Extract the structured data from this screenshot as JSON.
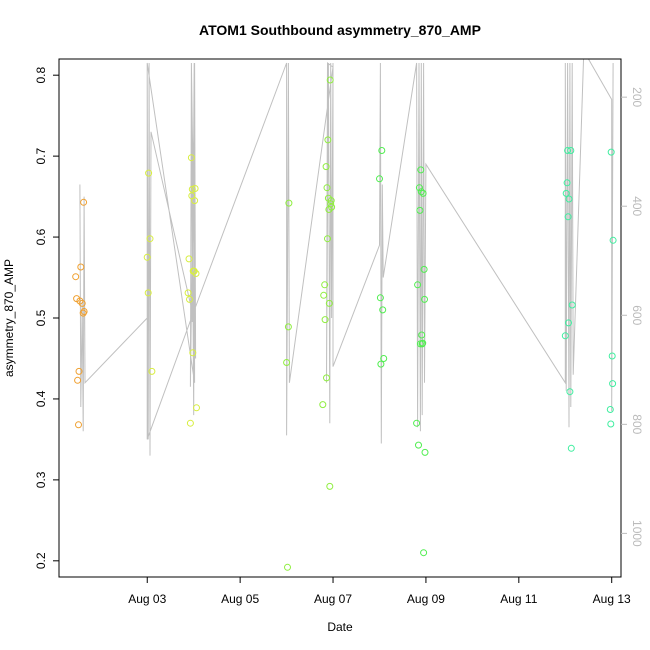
{
  "chart_data": {
    "type": "scatter",
    "title": "ATOM1 Southbound asymmetry_870_AMP",
    "xlabel": "Date",
    "ylabel": "asymmetry_870_AMP",
    "xlim": [
      1.1,
      13.2
    ],
    "ylim": [
      0.18,
      0.82
    ],
    "x_ticks": [
      3,
      5,
      7,
      9,
      11,
      13
    ],
    "x_tick_labels": [
      "Aug 03",
      "Aug 05",
      "Aug 07",
      "Aug 09",
      "Aug 11",
      "Aug 13"
    ],
    "y_ticks": [
      0.2,
      0.3,
      0.4,
      0.5,
      0.6,
      0.7,
      0.8
    ],
    "y_tick_labels": [
      "0.2",
      "0.3",
      "0.4",
      "0.5",
      "0.6",
      "0.7",
      "0.8"
    ],
    "right_axis": {
      "lim": [
        1080,
        130
      ],
      "ticks": [
        200,
        400,
        600,
        800,
        1000
      ],
      "tick_labels": [
        "200",
        "400",
        "600",
        "800",
        "1000"
      ],
      "color": "#bbbbbb"
    },
    "line_color": "#c0c0c0",
    "marker": "open-circle",
    "grid": false,
    "legend": "none",
    "series": [
      {
        "color": "#f0a030",
        "points": [
          [
            1.46,
            0.551
          ],
          [
            1.48,
            0.524
          ],
          [
            1.5,
            0.423
          ],
          [
            1.52,
            0.368
          ],
          [
            1.53,
            0.434
          ],
          [
            1.55,
            0.521
          ],
          [
            1.57,
            0.563
          ],
          [
            1.6,
            0.518
          ],
          [
            1.62,
            0.506
          ],
          [
            1.63,
            0.643
          ],
          [
            1.64,
            0.508
          ]
        ]
      },
      {
        "color": "#d8ee40",
        "points": [
          [
            3.0,
            0.575
          ],
          [
            3.02,
            0.531
          ],
          [
            3.03,
            0.679
          ],
          [
            3.06,
            0.598
          ],
          [
            3.1,
            0.434
          ],
          [
            3.88,
            0.531
          ],
          [
            3.9,
            0.573
          ],
          [
            3.91,
            0.523
          ],
          [
            3.93,
            0.37
          ],
          [
            3.95,
            0.698
          ],
          [
            3.96,
            0.651
          ],
          [
            3.97,
            0.659
          ],
          [
            3.98,
            0.457
          ],
          [
            3.99,
            0.558
          ],
          [
            4.01,
            0.558
          ],
          [
            4.02,
            0.645
          ],
          [
            4.03,
            0.66
          ],
          [
            4.05,
            0.555
          ],
          [
            4.06,
            0.389
          ]
        ]
      },
      {
        "color": "#90ee40",
        "points": [
          [
            6.0,
            0.445
          ],
          [
            6.02,
            0.192
          ],
          [
            6.04,
            0.489
          ],
          [
            6.05,
            0.642
          ],
          [
            6.78,
            0.393
          ],
          [
            6.8,
            0.528
          ],
          [
            6.82,
            0.541
          ],
          [
            6.83,
            0.498
          ],
          [
            6.85,
            0.687
          ],
          [
            6.86,
            0.426
          ],
          [
            6.87,
            0.661
          ],
          [
            6.88,
            0.598
          ],
          [
            6.89,
            0.72
          ],
          [
            6.9,
            0.648
          ],
          [
            6.91,
            0.634
          ],
          [
            6.92,
            0.518
          ],
          [
            6.93,
            0.292
          ],
          [
            6.94,
            0.794
          ],
          [
            6.95,
            0.641
          ],
          [
            6.96,
            0.645
          ],
          [
            6.97,
            0.637
          ]
        ]
      },
      {
        "color": "#50ee50",
        "points": [
          [
            8.0,
            0.672
          ],
          [
            8.02,
            0.525
          ],
          [
            8.03,
            0.443
          ],
          [
            8.05,
            0.707
          ],
          [
            8.07,
            0.51
          ],
          [
            8.09,
            0.45
          ],
          [
            8.8,
            0.37
          ],
          [
            8.82,
            0.541
          ],
          [
            8.84,
            0.343
          ],
          [
            8.86,
            0.661
          ],
          [
            8.87,
            0.633
          ],
          [
            8.88,
            0.468
          ],
          [
            8.89,
            0.683
          ],
          [
            8.9,
            0.656
          ],
          [
            8.91,
            0.479
          ],
          [
            8.92,
            0.468
          ],
          [
            8.93,
            0.469
          ],
          [
            8.94,
            0.654
          ],
          [
            8.95,
            0.21
          ],
          [
            8.96,
            0.56
          ],
          [
            8.97,
            0.523
          ],
          [
            8.98,
            0.334
          ]
        ]
      },
      {
        "color": "#40eea0",
        "points": [
          [
            12.0,
            0.478
          ],
          [
            12.02,
            0.654
          ],
          [
            12.04,
            0.667
          ],
          [
            12.05,
            0.707
          ],
          [
            12.06,
            0.625
          ],
          [
            12.07,
            0.494
          ],
          [
            12.08,
            0.647
          ],
          [
            12.1,
            0.409
          ],
          [
            12.12,
            0.707
          ],
          [
            12.13,
            0.339
          ],
          [
            12.15,
            0.516
          ],
          [
            12.97,
            0.387
          ],
          [
            12.98,
            0.369
          ],
          [
            12.99,
            0.705
          ],
          [
            13.01,
            0.453
          ],
          [
            13.02,
            0.419
          ],
          [
            13.03,
            0.596
          ]
        ]
      }
    ],
    "trace": [
      [
        1.55,
        0.665
      ],
      [
        1.57,
        0.39
      ],
      [
        1.6,
        0.52
      ],
      [
        1.62,
        0.36
      ],
      [
        1.64,
        0.65
      ],
      [
        1.66,
        0.42
      ],
      [
        3.0,
        0.5
      ],
      [
        3.0,
        0.815
      ],
      [
        3.02,
        0.35
      ],
      [
        3.04,
        0.815
      ],
      [
        3.06,
        0.33
      ],
      [
        3.08,
        0.73
      ],
      [
        4.0,
        0.5
      ],
      [
        4.02,
        0.815
      ],
      [
        3.93,
        0.415
      ],
      [
        3.95,
        0.815
      ],
      [
        4.0,
        0.38
      ],
      [
        4.02,
        0.815
      ],
      [
        4.04,
        0.45
      ],
      [
        3.95,
        0.815
      ],
      [
        3.97,
        0.495
      ],
      [
        4.01,
        0.815
      ],
      [
        4.02,
        0.42
      ],
      [
        3.0,
        0.815
      ],
      [
        3.0,
        0.35
      ],
      [
        3.95,
        0.5
      ],
      [
        6.0,
        0.815
      ],
      [
        6.0,
        0.355
      ],
      [
        6.02,
        0.56
      ],
      [
        6.04,
        0.815
      ],
      [
        6.06,
        0.42
      ],
      [
        7.0,
        0.81
      ],
      [
        6.88,
        0.815
      ],
      [
        6.86,
        0.42
      ],
      [
        6.9,
        0.815
      ],
      [
        6.93,
        0.37
      ],
      [
        6.95,
        0.815
      ],
      [
        6.97,
        0.5
      ],
      [
        7.0,
        0.815
      ],
      [
        7.0,
        0.44
      ],
      [
        8.0,
        0.59
      ],
      [
        8.02,
        0.815
      ],
      [
        8.04,
        0.345
      ],
      [
        8.06,
        0.665
      ],
      [
        8.08,
        0.55
      ],
      [
        8.8,
        0.815
      ],
      [
        8.82,
        0.365
      ],
      [
        8.85,
        0.815
      ],
      [
        8.88,
        0.36
      ],
      [
        8.9,
        0.815
      ],
      [
        8.92,
        0.38
      ],
      [
        8.95,
        0.815
      ],
      [
        8.97,
        0.42
      ],
      [
        9.0,
        0.69
      ],
      [
        12.0,
        0.42
      ],
      [
        12.0,
        0.815
      ],
      [
        12.02,
        0.41
      ],
      [
        12.05,
        0.815
      ],
      [
        12.08,
        0.365
      ],
      [
        12.1,
        0.815
      ],
      [
        12.12,
        0.39
      ],
      [
        12.15,
        0.815
      ],
      [
        12.17,
        0.43
      ],
      [
        12.4,
        0.83
      ],
      [
        13.0,
        0.77
      ],
      [
        13.0,
        0.385
      ],
      [
        13.03,
        0.815
      ]
    ]
  }
}
